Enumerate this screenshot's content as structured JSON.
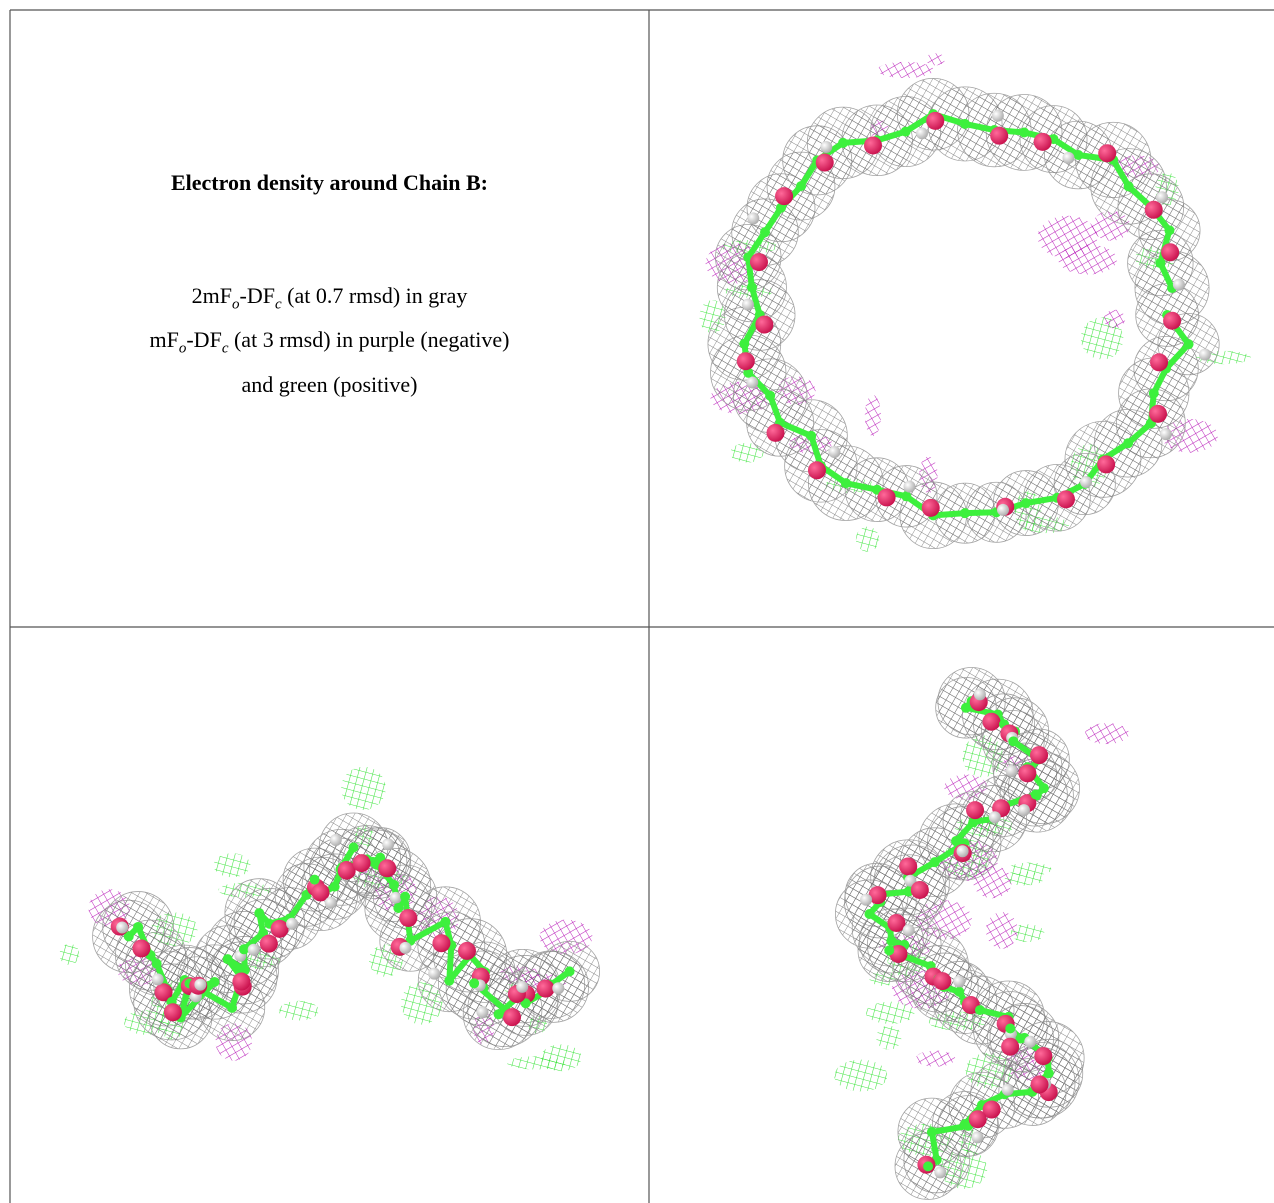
{
  "caption": {
    "title": "Electron density around Chain B:",
    "lines": [
      [
        {
          "text": "2mF",
          "sub": "o"
        },
        {
          "text": "-DF",
          "sub": "c"
        },
        {
          "text": " (at 0.7 rmsd) in gray"
        }
      ],
      [
        {
          "text": "mF",
          "sub": "o"
        },
        {
          "text": "-DF",
          "sub": "c"
        },
        {
          "text": " (at 3 rmsd) in purple (negative)"
        }
      ],
      [
        {
          "text": "and green (positive)"
        }
      ]
    ]
  }
}
